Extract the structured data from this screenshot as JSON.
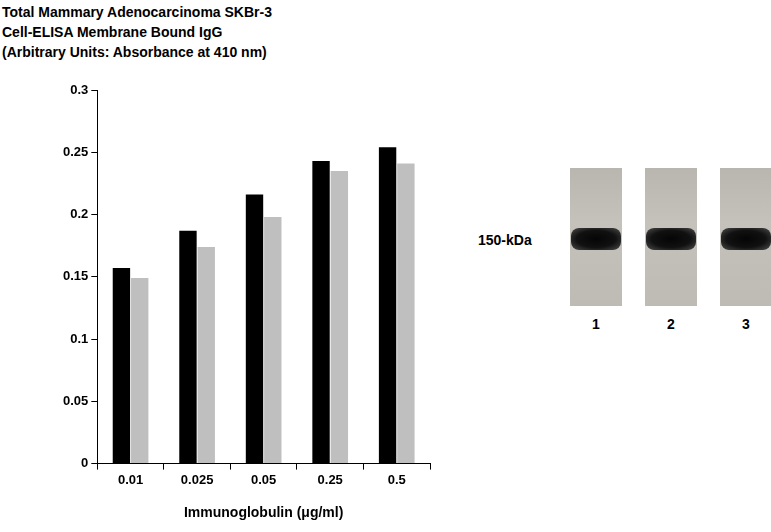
{
  "chart_data": {
    "type": "bar",
    "title": [
      "Total Mammary Adenocarcinoma SKBr-3",
      "Cell-ELISA Membrane Bound IgG",
      "(Arbitrary Units: Absorbance at 410 nm)"
    ],
    "x_label": "Immunoglobulin (μg/ml)",
    "categories": [
      "0.01",
      "0.025",
      "0.05",
      "0.25",
      "0.5"
    ],
    "series": [
      {
        "color": "#000000",
        "values": [
          0.157,
          0.187,
          0.216,
          0.243,
          0.254
        ]
      },
      {
        "color": "#bfbfbf",
        "values": [
          0.149,
          0.174,
          0.198,
          0.235,
          0.241
        ]
      }
    ],
    "ylim": [
      0,
      0.3
    ],
    "yticks": [
      0,
      0.05,
      0.1,
      0.15,
      0.2,
      0.25,
      0.3
    ],
    "grid": false
  },
  "blot": {
    "marker_label": "150-kDa",
    "lanes": [
      "1",
      "2",
      "3"
    ]
  }
}
